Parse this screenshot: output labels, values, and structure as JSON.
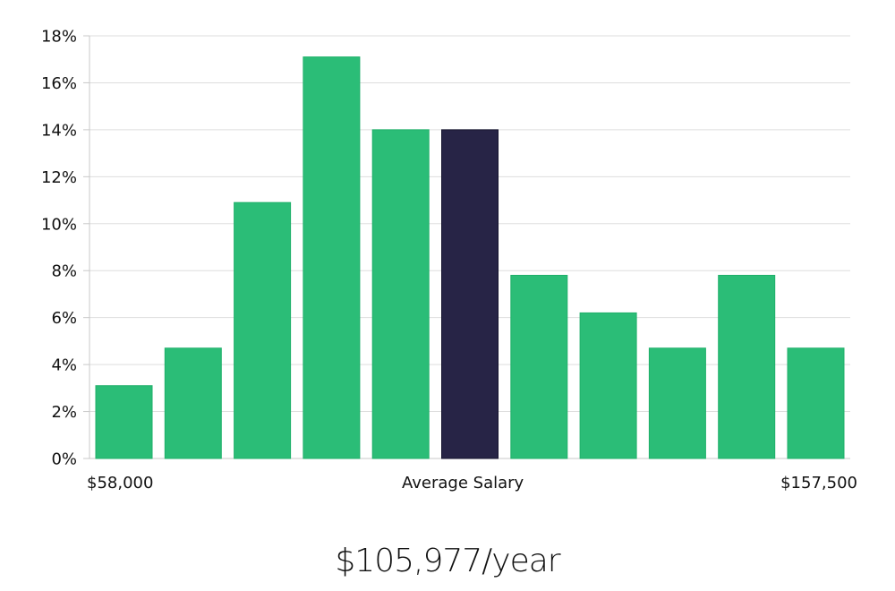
{
  "chart_data": {
    "type": "bar",
    "title": "",
    "xlabel": "Average Salary",
    "ylabel": "",
    "x_range_labels": {
      "min": "$58,000",
      "max": "$157,500"
    },
    "ylim": [
      0,
      18
    ],
    "yticks": [
      0,
      2,
      4,
      6,
      8,
      10,
      12,
      14,
      16,
      18
    ],
    "ytick_labels": [
      "0%",
      "2%",
      "4%",
      "6%",
      "8%",
      "10%",
      "12%",
      "14%",
      "16%",
      "18%"
    ],
    "values": [
      3.1,
      4.7,
      10.9,
      17.1,
      14.0,
      14.0,
      7.8,
      6.2,
      4.7,
      7.8,
      4.7
    ],
    "highlight_index": 5,
    "grid": true,
    "colors": {
      "bar": "#2bbd77",
      "bar_border": "#1fb06a",
      "highlight": "#272446",
      "grid": "#dddddd",
      "axis": "#c8c8c8"
    }
  },
  "labels": {
    "x_min": "$58,000",
    "x_mid": "Average Salary",
    "x_max": "$157,500",
    "salary": "$105,977/year"
  }
}
